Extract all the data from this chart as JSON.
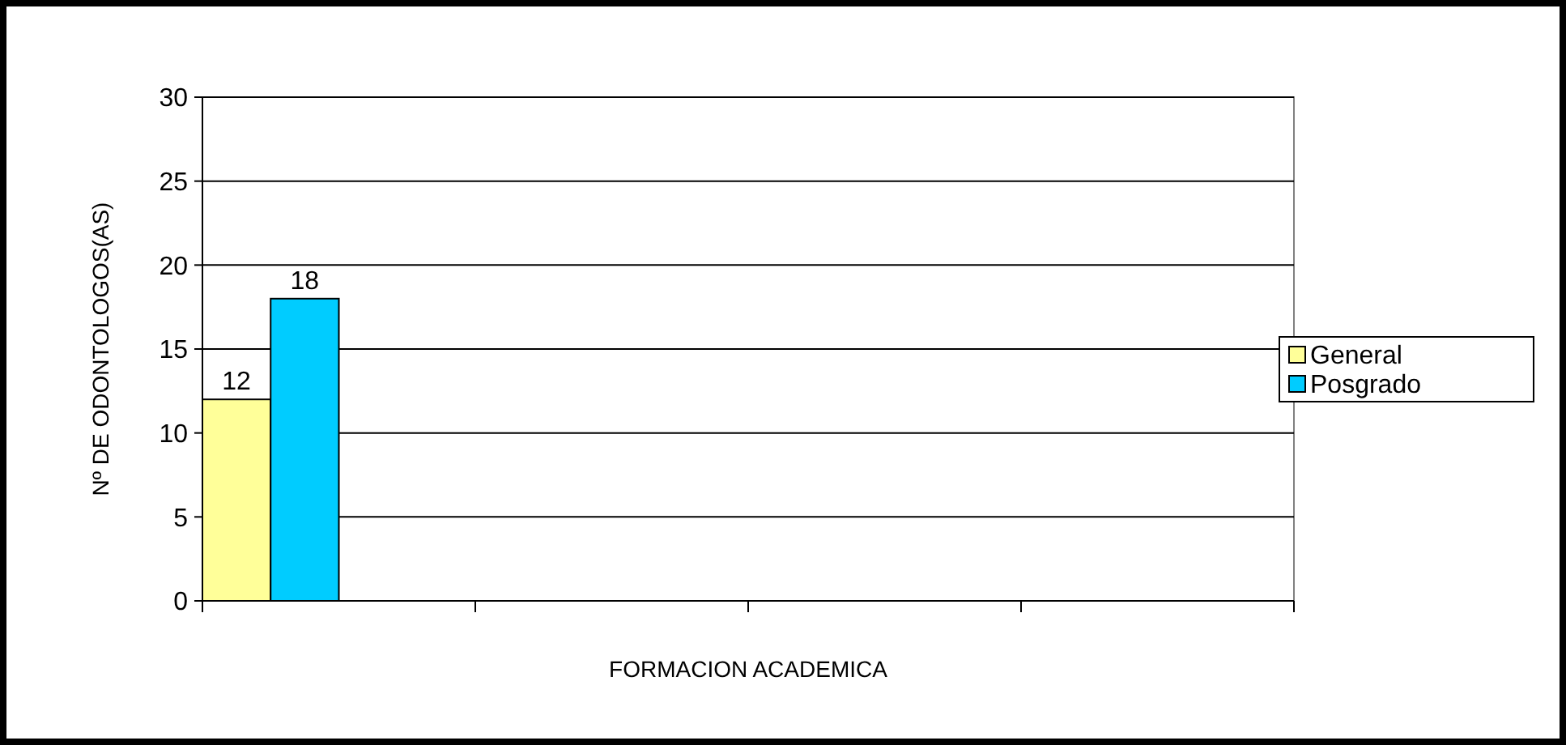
{
  "chart_data": {
    "type": "bar",
    "xlabel": "FORMACION ACADEMICA",
    "ylabel": "Nº DE ODONTOLOGOS(AS)",
    "categories": [
      null,
      null,
      null,
      null
    ],
    "series": [
      {
        "name": "General",
        "color": "#ffff99",
        "values": [
          12,
          null,
          null,
          null
        ]
      },
      {
        "name": "Posgrado",
        "color": "#00ccff",
        "values": [
          18,
          null,
          null,
          null
        ]
      }
    ],
    "ylim": [
      0,
      30
    ],
    "yticks": [
      0,
      5,
      10,
      15,
      20,
      25,
      30
    ],
    "grid": "y",
    "legend": "right",
    "data_labels": true
  }
}
